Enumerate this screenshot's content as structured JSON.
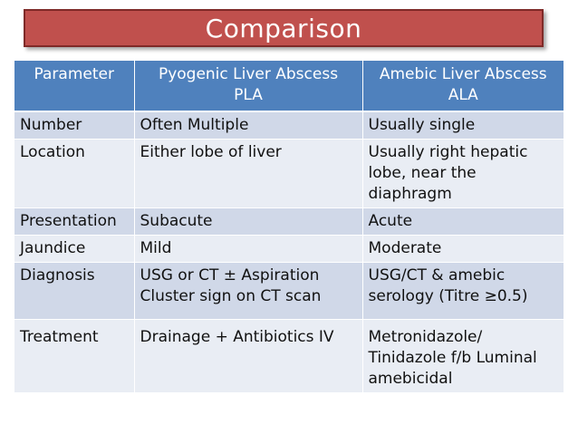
{
  "title": "Comparison",
  "table": {
    "headers": [
      [
        "Parameter"
      ],
      [
        "Pyogenic Liver Abscess",
        "PLA"
      ],
      [
        "Amebic Liver Abscess",
        "ALA"
      ]
    ],
    "rows": [
      {
        "parameter": [
          "Number"
        ],
        "pla": [
          "Often Multiple"
        ],
        "ala": [
          "Usually single"
        ]
      },
      {
        "parameter": [
          "Location"
        ],
        "pla": [
          "Either lobe of liver"
        ],
        "ala": [
          "Usually right hepatic",
          "lobe, near the",
          "diaphragm"
        ]
      },
      {
        "parameter": [
          "Presentation"
        ],
        "pla": [
          "Subacute"
        ],
        "ala": [
          "Acute"
        ]
      },
      {
        "parameter": [
          "Jaundice"
        ],
        "pla": [
          "Mild"
        ],
        "ala": [
          "Moderate"
        ]
      },
      {
        "parameter": [
          "Diagnosis"
        ],
        "pla": [
          "USG or CT ± Aspiration",
          "Cluster sign on CT scan"
        ],
        "ala": [
          "USG/CT & amebic",
          "serology (Titre ≥0.5)"
        ]
      },
      {
        "parameter": [
          "Treatment"
        ],
        "pla": [
          "Drainage + Antibiotics IV"
        ],
        "ala": [
          "Metronidazole/",
          "Tinidazole f/b Luminal",
          "amebicidal"
        ]
      }
    ]
  },
  "colors": {
    "title_background": "#c0504d",
    "header_background": "#4f81bd",
    "row_odd": "#d0d8e8",
    "row_even": "#e9edf4"
  }
}
